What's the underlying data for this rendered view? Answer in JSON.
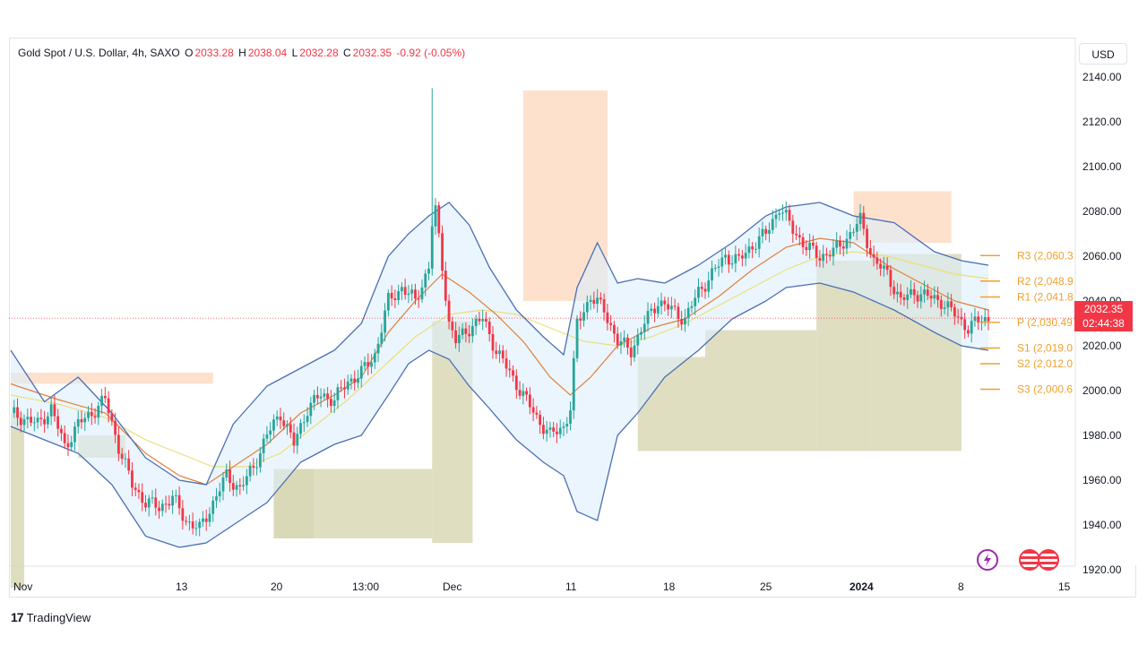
{
  "legend": {
    "symbol": "Gold Spot / U.S. Dollar, 4h, SAXO",
    "open_key": "O",
    "open": "2033.28",
    "high_key": "H",
    "high": "2038.04",
    "low_key": "L",
    "low": "2032.28",
    "close_key": "C",
    "close": "2032.35",
    "change": "-0.92 (-0.05%)"
  },
  "currency_button": "USD",
  "price_tag": {
    "price": "2032.35",
    "countdown": "02:44:38"
  },
  "brand": {
    "logo": "17",
    "name": "TradingView"
  },
  "icons": {
    "flash": "lightning-icon",
    "flags": "us-flag-icon"
  },
  "colors": {
    "up": "#26a69a",
    "down": "#f23645",
    "bollinger": "#4a6fb5",
    "band_fill": "#ddeefb",
    "ma_fast": "#e0813a",
    "ma_slow": "#e9e07a",
    "pivot": "#f0a030",
    "supply_zone": "#fddcc4",
    "demand_zone": "#d9d8b5"
  },
  "chart_data": {
    "type": "candlestick",
    "y_axis_labels": [
      "2140.00",
      "2120.00",
      "2100.00",
      "2080.00",
      "2060.00",
      "2040.00",
      "2020.00",
      "2000.00",
      "1980.00",
      "1960.00",
      "1940.00",
      "1920.00"
    ],
    "ylim": [
      1912,
      2146
    ],
    "x_axis_labels": [
      "Nov",
      "13",
      "20",
      "13:00",
      "Dec",
      "11",
      "18",
      "25",
      "2024",
      "8",
      "15"
    ],
    "pivot_levels": [
      {
        "label": "R3 (2,060.3",
        "value": 2060.3
      },
      {
        "label": "R2 (2,048.9",
        "value": 2048.9
      },
      {
        "label": "R1 (2,041.8",
        "value": 2041.8
      },
      {
        "label": "P (2,030.49",
        "value": 2030.49
      },
      {
        "label": "S1 (2,019.0",
        "value": 2019.0
      },
      {
        "label": "S2 (2,012.0",
        "value": 2012.0
      },
      {
        "label": "S3 (2,000.6",
        "value": 2000.6
      }
    ],
    "anchor_points": [
      [
        0,
        1990
      ],
      [
        8,
        1985
      ],
      [
        12,
        1992
      ],
      [
        16,
        1975
      ],
      [
        20,
        1985
      ],
      [
        24,
        1990
      ],
      [
        28,
        1996
      ],
      [
        32,
        1975
      ],
      [
        36,
        1958
      ],
      [
        40,
        1950
      ],
      [
        44,
        1948
      ],
      [
        48,
        1952
      ],
      [
        52,
        1942
      ],
      [
        56,
        1938
      ],
      [
        60,
        1950
      ],
      [
        64,
        1962
      ],
      [
        68,
        1956
      ],
      [
        72,
        1966
      ],
      [
        76,
        1980
      ],
      [
        80,
        1990
      ],
      [
        84,
        1976
      ],
      [
        88,
        1992
      ],
      [
        92,
        1998
      ],
      [
        96,
        1996
      ],
      [
        100,
        2004
      ],
      [
        104,
        2008
      ],
      [
        108,
        2016
      ],
      [
        112,
        2040
      ],
      [
        116,
        2046
      ],
      [
        120,
        2040
      ],
      [
        124,
        2055
      ],
      [
        125,
        2074
      ],
      [
        126,
        2080
      ],
      [
        128,
        2056
      ],
      [
        130,
        2030
      ],
      [
        132,
        2022
      ],
      [
        136,
        2028
      ],
      [
        140,
        2032
      ],
      [
        144,
        2018
      ],
      [
        148,
        2008
      ],
      [
        152,
        1998
      ],
      [
        156,
        1988
      ],
      [
        160,
        1980
      ],
      [
        164,
        1984
      ],
      [
        166,
        1992
      ],
      [
        168,
        2030
      ],
      [
        172,
        2042
      ],
      [
        176,
        2036
      ],
      [
        180,
        2022
      ],
      [
        184,
        2018
      ],
      [
        188,
        2030
      ],
      [
        192,
        2040
      ],
      [
        196,
        2036
      ],
      [
        200,
        2032
      ],
      [
        204,
        2044
      ],
      [
        208,
        2052
      ],
      [
        212,
        2060
      ],
      [
        216,
        2058
      ],
      [
        220,
        2065
      ],
      [
        224,
        2070
      ],
      [
        228,
        2082
      ],
      [
        232,
        2072
      ],
      [
        236,
        2064
      ],
      [
        240,
        2060
      ],
      [
        244,
        2062
      ],
      [
        248,
        2068
      ],
      [
        252,
        2076
      ],
      [
        256,
        2058
      ],
      [
        260,
        2052
      ],
      [
        264,
        2040
      ],
      [
        268,
        2044
      ],
      [
        272,
        2042
      ],
      [
        276,
        2040
      ],
      [
        280,
        2034
      ],
      [
        284,
        2028
      ],
      [
        288,
        2032
      ]
    ],
    "bollinger_upper": [
      [
        0,
        2018
      ],
      [
        10,
        1995
      ],
      [
        20,
        2006
      ],
      [
        30,
        1990
      ],
      [
        40,
        1970
      ],
      [
        50,
        1960
      ],
      [
        58,
        1958
      ],
      [
        66,
        1985
      ],
      [
        76,
        2002
      ],
      [
        86,
        2010
      ],
      [
        96,
        2018
      ],
      [
        104,
        2030
      ],
      [
        112,
        2060
      ],
      [
        118,
        2070
      ],
      [
        124,
        2078
      ],
      [
        130,
        2084
      ],
      [
        136,
        2074
      ],
      [
        142,
        2055
      ],
      [
        150,
        2036
      ],
      [
        158,
        2024
      ],
      [
        164,
        2016
      ],
      [
        168,
        2046
      ],
      [
        174,
        2066
      ],
      [
        180,
        2048
      ],
      [
        186,
        2050
      ],
      [
        194,
        2048
      ],
      [
        204,
        2056
      ],
      [
        214,
        2066
      ],
      [
        224,
        2078
      ],
      [
        230,
        2082
      ],
      [
        240,
        2084
      ],
      [
        250,
        2078
      ],
      [
        262,
        2075
      ],
      [
        274,
        2062
      ],
      [
        282,
        2058
      ],
      [
        290,
        2056
      ]
    ],
    "bollinger_lower": [
      [
        0,
        1984
      ],
      [
        10,
        1978
      ],
      [
        20,
        1972
      ],
      [
        30,
        1958
      ],
      [
        40,
        1935
      ],
      [
        50,
        1930
      ],
      [
        58,
        1932
      ],
      [
        66,
        1940
      ],
      [
        76,
        1950
      ],
      [
        86,
        1968
      ],
      [
        96,
        1976
      ],
      [
        104,
        1980
      ],
      [
        112,
        1998
      ],
      [
        118,
        2012
      ],
      [
        124,
        2018
      ],
      [
        130,
        2014
      ],
      [
        136,
        2002
      ],
      [
        142,
        1992
      ],
      [
        150,
        1978
      ],
      [
        158,
        1968
      ],
      [
        164,
        1962
      ],
      [
        168,
        1946
      ],
      [
        174,
        1942
      ],
      [
        180,
        1980
      ],
      [
        186,
        1990
      ],
      [
        194,
        2006
      ],
      [
        204,
        2018
      ],
      [
        214,
        2032
      ],
      [
        224,
        2040
      ],
      [
        230,
        2046
      ],
      [
        240,
        2048
      ],
      [
        250,
        2044
      ],
      [
        262,
        2036
      ],
      [
        274,
        2026
      ],
      [
        282,
        2020
      ],
      [
        290,
        2018
      ]
    ],
    "ma_fast": [
      [
        0,
        2003
      ],
      [
        14,
        1996
      ],
      [
        28,
        1990
      ],
      [
        40,
        1972
      ],
      [
        50,
        1962
      ],
      [
        58,
        1958
      ],
      [
        66,
        1966
      ],
      [
        76,
        1976
      ],
      [
        86,
        1990
      ],
      [
        96,
        1998
      ],
      [
        104,
        2006
      ],
      [
        112,
        2026
      ],
      [
        120,
        2040
      ],
      [
        128,
        2052
      ],
      [
        136,
        2044
      ],
      [
        144,
        2034
      ],
      [
        152,
        2022
      ],
      [
        160,
        2006
      ],
      [
        166,
        1998
      ],
      [
        172,
        2006
      ],
      [
        180,
        2020
      ],
      [
        190,
        2028
      ],
      [
        200,
        2032
      ],
      [
        210,
        2042
      ],
      [
        220,
        2054
      ],
      [
        230,
        2064
      ],
      [
        240,
        2068
      ],
      [
        250,
        2066
      ],
      [
        260,
        2056
      ],
      [
        270,
        2048
      ],
      [
        280,
        2040
      ],
      [
        290,
        2036
      ]
    ],
    "ma_slow": [
      [
        0,
        1998
      ],
      [
        14,
        1994
      ],
      [
        28,
        1988
      ],
      [
        40,
        1978
      ],
      [
        50,
        1972
      ],
      [
        60,
        1966
      ],
      [
        70,
        1966
      ],
      [
        80,
        1972
      ],
      [
        90,
        1984
      ],
      [
        100,
        1996
      ],
      [
        110,
        2010
      ],
      [
        120,
        2024
      ],
      [
        130,
        2034
      ],
      [
        140,
        2036
      ],
      [
        150,
        2034
      ],
      [
        160,
        2028
      ],
      [
        170,
        2022
      ],
      [
        180,
        2020
      ],
      [
        190,
        2024
      ],
      [
        200,
        2030
      ],
      [
        210,
        2038
      ],
      [
        220,
        2046
      ],
      [
        230,
        2054
      ],
      [
        240,
        2060
      ],
      [
        250,
        2062
      ],
      [
        260,
        2060
      ],
      [
        270,
        2056
      ],
      [
        280,
        2052
      ],
      [
        290,
        2050
      ]
    ],
    "zones": [
      {
        "kind": "supply",
        "x0": 0,
        "x1": 60,
        "y0": 2003,
        "y1": 2008
      },
      {
        "kind": "supply",
        "x0": 152,
        "x1": 177,
        "y0": 2040,
        "y1": 2134
      },
      {
        "kind": "supply",
        "x0": 250,
        "x1": 279,
        "y0": 2066,
        "y1": 2089
      },
      {
        "kind": "demand",
        "x0": 0,
        "x1": 4,
        "y0": 1912,
        "y1": 1990
      },
      {
        "kind": "demand",
        "x0": 20,
        "x1": 34,
        "y0": 1970,
        "y1": 1980
      },
      {
        "kind": "demand",
        "x0": 78,
        "x1": 125,
        "y0": 1965,
        "y1": 1934
      },
      {
        "kind": "demand",
        "x0": 78,
        "x1": 90,
        "y0": 1934,
        "y1": 1965
      },
      {
        "kind": "demand",
        "x0": 125,
        "x1": 137,
        "y0": 1932,
        "y1": 2031
      },
      {
        "kind": "demand",
        "x0": 186,
        "x1": 206,
        "y0": 1973,
        "y1": 2015
      },
      {
        "kind": "demand",
        "x0": 206,
        "x1": 239,
        "y0": 1973,
        "y1": 2027
      },
      {
        "kind": "demand",
        "x0": 239,
        "x1": 255,
        "y0": 1973,
        "y1": 2058
      },
      {
        "kind": "demand",
        "x0": 255,
        "x1": 282,
        "y0": 1973,
        "y1": 2061
      }
    ]
  }
}
